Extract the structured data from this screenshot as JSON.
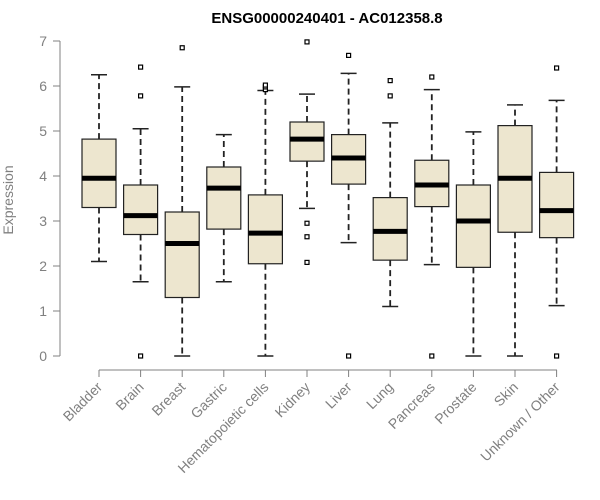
{
  "chart_data": {
    "type": "boxplot",
    "title": "ENSG00000240401 - AC012358.8",
    "xlabel": "",
    "ylabel": "Expression",
    "ylim": [
      0,
      7
    ],
    "yticks": [
      0,
      1,
      2,
      3,
      4,
      5,
      6,
      7
    ],
    "grid": false,
    "colors": {
      "box_fill": "#ede6cf",
      "box_stroke": "#222222",
      "axis": "#808080",
      "text": "#808080",
      "title": "#000000"
    },
    "categories": [
      "Bladder",
      "Brain",
      "Breast",
      "Gastric",
      "Hematopoietic cells",
      "Kidney",
      "Liver",
      "Lung",
      "Pancreas",
      "Prostate",
      "Skin",
      "Unknown / Other"
    ],
    "boxes": [
      {
        "category": "Bladder",
        "whisker_low": 2.1,
        "q1": 3.3,
        "median": 3.95,
        "q3": 4.82,
        "whisker_high": 6.25,
        "outliers": []
      },
      {
        "category": "Brain",
        "whisker_low": 1.65,
        "q1": 2.7,
        "median": 3.12,
        "q3": 3.8,
        "whisker_high": 5.05,
        "outliers": [
          0.0,
          5.78,
          6.42
        ]
      },
      {
        "category": "Breast",
        "whisker_low": 0.0,
        "q1": 1.3,
        "median": 2.5,
        "q3": 3.2,
        "whisker_high": 5.98,
        "outliers": [
          6.85
        ]
      },
      {
        "category": "Gastric",
        "whisker_low": 1.65,
        "q1": 2.82,
        "median": 3.73,
        "q3": 4.2,
        "whisker_high": 4.92,
        "outliers": []
      },
      {
        "category": "Hematopoietic cells",
        "whisker_low": 0.0,
        "q1": 2.05,
        "median": 2.73,
        "q3": 3.58,
        "whisker_high": 5.9,
        "outliers": [
          5.92,
          5.98,
          6.02
        ]
      },
      {
        "category": "Kidney",
        "whisker_low": 3.28,
        "q1": 4.33,
        "median": 4.82,
        "q3": 5.2,
        "whisker_high": 5.82,
        "outliers": [
          2.08,
          2.65,
          2.95,
          6.98
        ]
      },
      {
        "category": "Liver",
        "whisker_low": 2.52,
        "q1": 3.82,
        "median": 4.4,
        "q3": 4.92,
        "whisker_high": 6.28,
        "outliers": [
          0.0,
          6.68
        ]
      },
      {
        "category": "Lung",
        "whisker_low": 1.1,
        "q1": 2.13,
        "median": 2.77,
        "q3": 3.52,
        "whisker_high": 5.18,
        "outliers": [
          5.78,
          6.12
        ]
      },
      {
        "category": "Pancreas",
        "whisker_low": 2.03,
        "q1": 3.32,
        "median": 3.8,
        "q3": 4.35,
        "whisker_high": 5.92,
        "outliers": [
          0.0,
          6.2
        ]
      },
      {
        "category": "Prostate",
        "whisker_low": 0.0,
        "q1": 1.97,
        "median": 3.0,
        "q3": 3.8,
        "whisker_high": 4.98,
        "outliers": []
      },
      {
        "category": "Skin",
        "whisker_low": 0.0,
        "q1": 2.75,
        "median": 3.95,
        "q3": 5.12,
        "whisker_high": 5.58,
        "outliers": []
      },
      {
        "category": "Unknown / Other",
        "whisker_low": 1.12,
        "q1": 2.63,
        "median": 3.23,
        "q3": 4.08,
        "whisker_high": 5.68,
        "outliers": [
          0.0,
          6.4
        ]
      }
    ]
  }
}
